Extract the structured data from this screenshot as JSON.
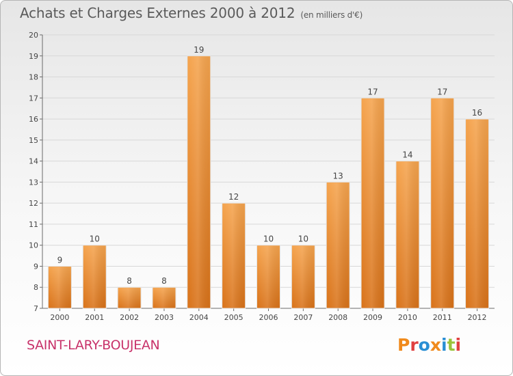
{
  "header": {
    "title": "Achats et Charges Externes 2000 à 2012",
    "subtitle": "(en milliers d'€)"
  },
  "footer": {
    "place": "SAINT-LARY-BOUJEAN",
    "logo": "Proxiti",
    "logo_colors": [
      "#f08a1c",
      "#e04040",
      "#2a8fd4",
      "#f08a1c",
      "#2a8fd4",
      "#9ac43c",
      "#e04040"
    ]
  },
  "colors": {
    "bar_top": "#f5a44e",
    "bar_bottom": "#d9731a",
    "grid": "#d8d8d8",
    "axis": "#6a6a6a",
    "text": "#444444"
  },
  "chart_data": {
    "type": "bar",
    "title": "Achats et Charges Externes 2000 à 2012",
    "subtitle": "(en milliers d'€)",
    "categories": [
      "2000",
      "2001",
      "2002",
      "2003",
      "2004",
      "2005",
      "2006",
      "2007",
      "2008",
      "2009",
      "2010",
      "2011",
      "2012"
    ],
    "values": [
      9,
      10,
      8,
      8,
      19,
      12,
      10,
      10,
      13,
      17,
      14,
      17,
      16
    ],
    "data_labels": [
      "9",
      "10",
      "8",
      "8",
      "19",
      "12",
      "10",
      "10",
      "13",
      "17",
      "14",
      "17",
      "16"
    ],
    "ylim": [
      7,
      20
    ],
    "yticks": [
      "7",
      "8",
      "9",
      "10",
      "11",
      "12",
      "13",
      "14",
      "15",
      "16",
      "17",
      "18",
      "19",
      "20"
    ],
    "grid": true,
    "legend": false
  }
}
